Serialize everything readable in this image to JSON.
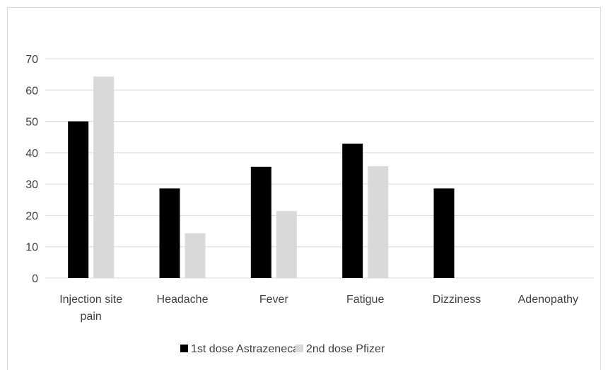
{
  "chart_data": {
    "type": "bar",
    "categories": [
      [
        "Injection site",
        "pain"
      ],
      [
        "Headache"
      ],
      [
        "Fever"
      ],
      [
        "Fatigue"
      ],
      [
        "Dizziness"
      ],
      [
        "Adenopathy"
      ]
    ],
    "series": [
      {
        "name": "1st dose Astrazeneca",
        "color": "#000000",
        "values": [
          50,
          28.6,
          35.5,
          42.9,
          28.6,
          0
        ]
      },
      {
        "name": "2nd dose Pfizer",
        "color": "#d9d9d9",
        "values": [
          64.3,
          14.3,
          21.4,
          35.7,
          0,
          0
        ]
      }
    ],
    "ylim": [
      0,
      70
    ],
    "yticks": [
      0,
      10,
      20,
      30,
      40,
      50,
      60,
      70
    ],
    "grid": true,
    "legend_position": "bottom"
  }
}
